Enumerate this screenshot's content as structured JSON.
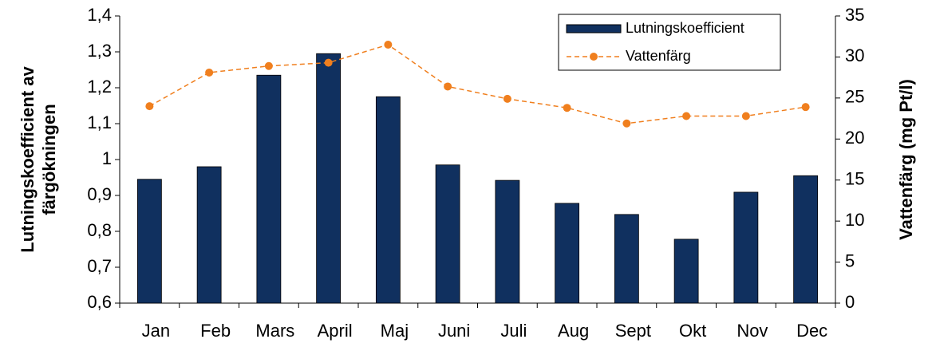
{
  "chart_data": {
    "type": "bar-line",
    "ylabel": [
      "Lutningskoefficient av",
      "färgökningen"
    ],
    "y2label": "Vattenfärg (mg Pt/l)",
    "categories": [
      "Jan",
      "Feb",
      "Mars",
      "April",
      "Maj",
      "Juni",
      "Juli",
      "Aug",
      "Sept",
      "Okt",
      "Nov",
      "Dec"
    ],
    "series": [
      {
        "name": "Lutningskoefficient",
        "type": "bar",
        "color": "#10305f",
        "axis": "y",
        "values": [
          0.945,
          0.98,
          1.235,
          1.295,
          1.175,
          0.985,
          0.942,
          0.878,
          0.847,
          0.778,
          0.909,
          0.955
        ]
      },
      {
        "name": "Vattenfärg",
        "type": "line",
        "color": "#f07f1e",
        "axis": "y2",
        "values": [
          24,
          28.1,
          28.9,
          29.3,
          31.5,
          26.4,
          24.9,
          23.8,
          21.9,
          22.8,
          22.8,
          23.9
        ]
      }
    ],
    "ylim": [
      0.6,
      1.4
    ],
    "yticks": [
      {
        "value": 0.6,
        "label": "0,6"
      },
      {
        "value": 0.7,
        "label": "0,7"
      },
      {
        "value": 0.8,
        "label": "0,8"
      },
      {
        "value": 0.9,
        "label": "0,9"
      },
      1,
      {
        "value": 1.1,
        "label": "1,1"
      },
      {
        "value": 1.2,
        "label": "1,2"
      },
      {
        "value": 1.3,
        "label": "1,3"
      },
      {
        "value": 1.4,
        "label": "1,4"
      }
    ],
    "y2lim": [
      0,
      35
    ],
    "y2ticks": [
      0,
      5,
      10,
      15,
      20,
      25,
      30,
      35
    ],
    "legend": "upper right"
  }
}
